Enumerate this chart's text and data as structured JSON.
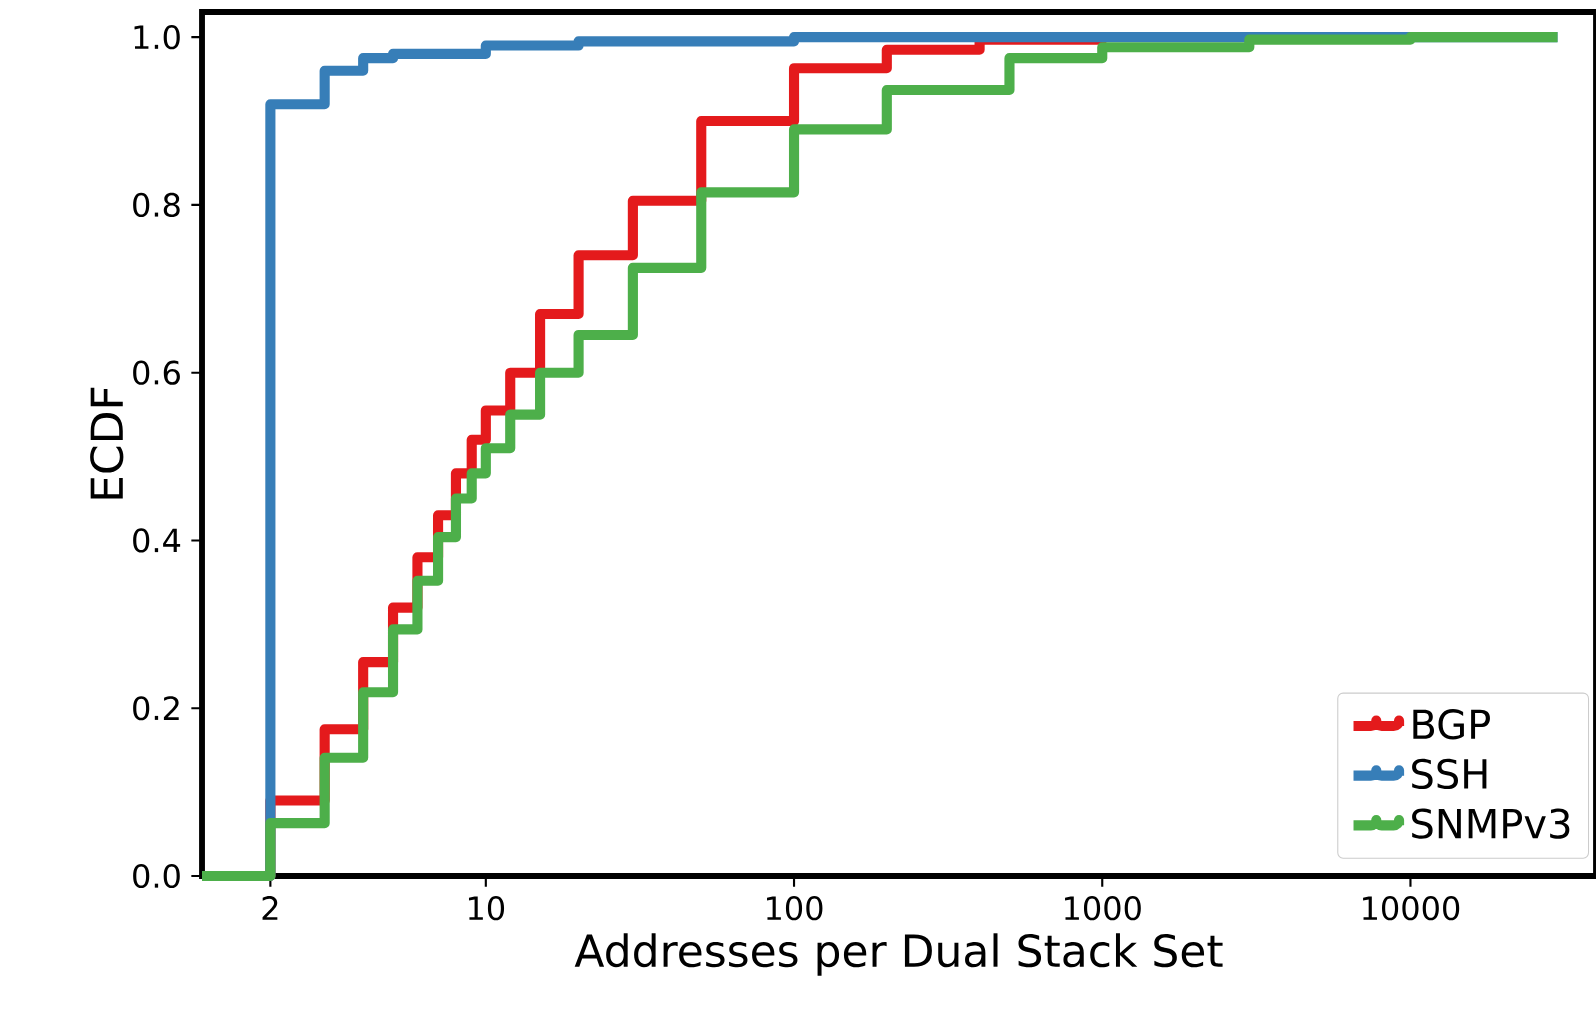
{
  "chart_data": {
    "type": "step",
    "xlabel": "Addresses per Dual Stack Set",
    "ylabel": "ECDF",
    "log": "x",
    "xlim": [
      1.2,
      40000
    ],
    "ylim": [
      0,
      1.03
    ],
    "xticks": [
      2,
      10,
      100,
      1000,
      10000
    ],
    "yticks": [
      {
        "value": 0,
        "label": "0.0"
      },
      {
        "value": 0.2,
        "label": "0.2"
      },
      {
        "value": 0.4,
        "label": "0.4"
      },
      {
        "value": 0.6,
        "label": "0.6"
      },
      {
        "value": 0.8,
        "label": "0.8"
      },
      {
        "value": 1,
        "label": "1.0"
      }
    ],
    "legend": "bottom right",
    "grid": false,
    "series": [
      {
        "name": "BGP",
        "color": "#e41a1c",
        "x": [
          1.2,
          2,
          3,
          4,
          5,
          6,
          7,
          8,
          9,
          10,
          12,
          15,
          20,
          30,
          50,
          100,
          200,
          400,
          1000
        ],
        "values": [
          0,
          0.09,
          0.175,
          0.255,
          0.32,
          0.38,
          0.43,
          0.48,
          0.52,
          0.555,
          0.6,
          0.67,
          0.74,
          0.805,
          0.9,
          0.963,
          0.985,
          0.997,
          1.0
        ]
      },
      {
        "name": "SSH",
        "color": "#377eb8",
        "x": [
          1.2,
          2,
          3,
          4,
          5,
          10,
          20,
          100,
          30000
        ],
        "values": [
          0,
          0.92,
          0.96,
          0.975,
          0.98,
          0.99,
          0.995,
          1.0,
          1.0
        ]
      },
      {
        "name": "SNMPv3",
        "color": "#4daf4a",
        "x": [
          1.2,
          2,
          3,
          4,
          5,
          6,
          7,
          8,
          9,
          10,
          12,
          15,
          20,
          30,
          50,
          100,
          200,
          500,
          1000,
          3000,
          10000,
          30000
        ],
        "values": [
          0,
          0.063,
          0.141,
          0.219,
          0.294,
          0.352,
          0.404,
          0.45,
          0.48,
          0.51,
          0.55,
          0.6,
          0.645,
          0.725,
          0.815,
          0.89,
          0.937,
          0.975,
          0.988,
          0.997,
          1.0,
          1.0
        ]
      }
    ]
  }
}
